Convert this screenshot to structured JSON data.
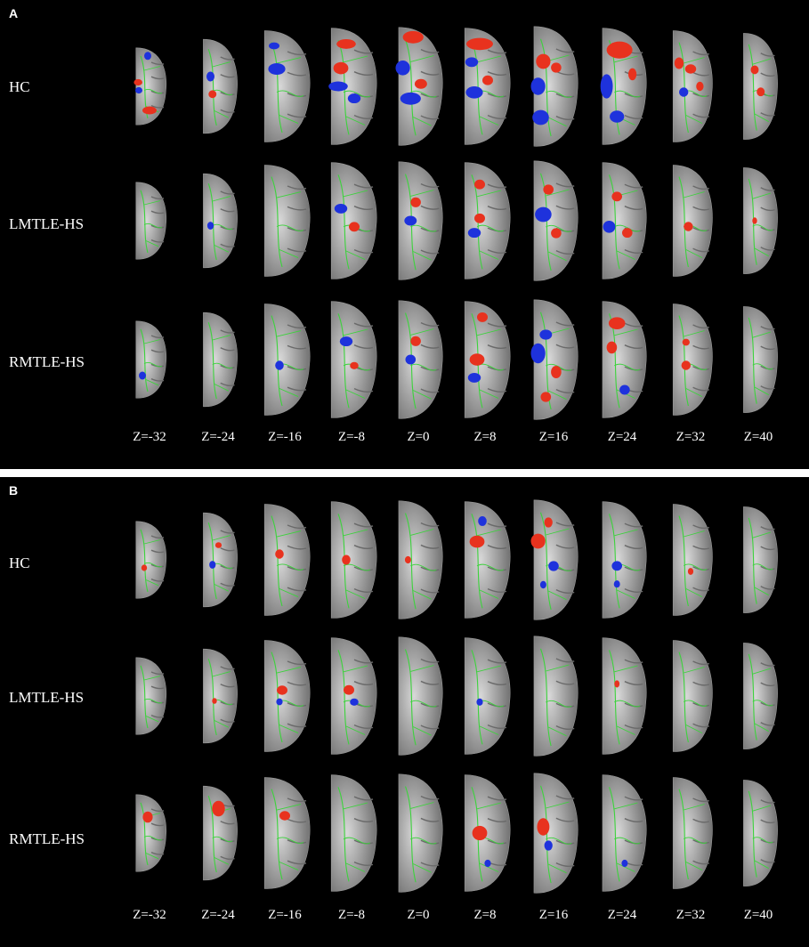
{
  "panels": [
    {
      "letter": "A",
      "groups": [
        "HC",
        "LMTLE-HS",
        "RMTLE-HS"
      ],
      "slices": [
        "Z=-32",
        "Z=-24",
        "Z=-16",
        "Z=-8",
        "Z=0",
        "Z=8",
        "Z=16",
        "Z=24",
        "Z=32",
        "Z=40"
      ]
    },
    {
      "letter": "B",
      "groups": [
        "HC",
        "LMTLE-HS",
        "RMTLE-HS"
      ],
      "slices": [
        "Z=-32",
        "Z=-24",
        "Z=-16",
        "Z=-8",
        "Z=0",
        "Z=8",
        "Z=16",
        "Z=24",
        "Z=32",
        "Z=40"
      ]
    }
  ],
  "colors": {
    "background": "#000000",
    "skeleton": "#3cd23c",
    "increase": "#e8321e",
    "decrease": "#1e32dc",
    "brain_light": "#d8d8d8",
    "brain_dark": "#5a5a5a"
  }
}
